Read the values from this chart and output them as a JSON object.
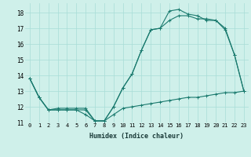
{
  "xlabel": "Humidex (Indice chaleur)",
  "ylabel": "",
  "background_color": "#cff0ea",
  "grid_color": "#a8ddd7",
  "line_color": "#1a7a6e",
  "xlim": [
    -0.5,
    23.5
  ],
  "ylim": [
    11,
    18.6
  ],
  "yticks": [
    11,
    12,
    13,
    14,
    15,
    16,
    17,
    18
  ],
  "xticks": [
    0,
    1,
    2,
    3,
    4,
    5,
    6,
    7,
    8,
    9,
    10,
    11,
    12,
    13,
    14,
    15,
    16,
    17,
    18,
    19,
    20,
    21,
    22,
    23
  ],
  "series1_x": [
    0,
    1,
    2,
    3,
    4,
    5,
    6,
    7,
    8,
    9,
    10,
    11,
    12,
    13,
    14,
    15,
    16,
    17,
    18,
    19,
    20,
    21,
    22,
    23
  ],
  "series1_y": [
    13.8,
    12.6,
    11.8,
    11.8,
    11.8,
    11.8,
    11.8,
    11.1,
    11.1,
    11.5,
    11.9,
    12.0,
    12.1,
    12.2,
    12.3,
    12.4,
    12.5,
    12.6,
    12.6,
    12.7,
    12.8,
    12.9,
    12.9,
    13.0
  ],
  "series2_x": [
    0,
    1,
    2,
    3,
    4,
    5,
    6,
    7,
    8,
    9,
    10,
    11,
    12,
    13,
    14,
    15,
    16,
    17,
    18,
    19,
    20,
    21,
    22,
    23
  ],
  "series2_y": [
    13.8,
    12.6,
    11.8,
    11.8,
    11.8,
    11.8,
    11.5,
    11.1,
    11.1,
    12.0,
    13.2,
    14.1,
    15.6,
    16.9,
    17.0,
    17.5,
    17.8,
    17.8,
    17.6,
    17.6,
    17.5,
    16.9,
    15.3,
    13.0
  ],
  "series3_x": [
    0,
    1,
    2,
    3,
    4,
    5,
    6,
    7,
    8,
    9,
    10,
    11,
    12,
    13,
    14,
    15,
    16,
    17,
    18,
    19,
    20,
    21,
    22,
    23
  ],
  "series3_y": [
    13.8,
    12.6,
    11.8,
    11.9,
    11.9,
    11.9,
    11.9,
    11.1,
    11.1,
    12.0,
    13.2,
    14.1,
    15.6,
    16.9,
    17.0,
    18.1,
    18.2,
    17.9,
    17.8,
    17.5,
    17.5,
    17.0,
    15.3,
    13.0
  ],
  "xlabel_fontsize": 6.0,
  "tick_fontsize": 5.0,
  "linewidth": 0.8,
  "markersize": 2.5
}
